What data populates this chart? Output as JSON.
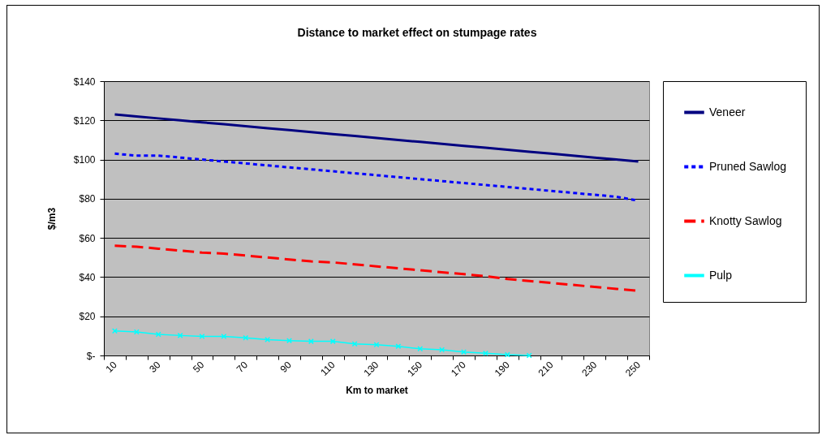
{
  "chart_data": {
    "type": "line",
    "title": "Distance to market effect on stumpage rates",
    "xlabel": "Km to market",
    "ylabel": "$/m3",
    "categories": [
      "10",
      null,
      "30",
      null,
      "50",
      null,
      "70",
      null,
      "90",
      null,
      "110",
      null,
      "130",
      null,
      "150",
      null,
      "170",
      null,
      "190",
      null,
      "210",
      null,
      "230",
      null,
      "250"
    ],
    "series": [
      {
        "name": "Veneer",
        "color": "#000080",
        "line_style": "solid",
        "values": [
          123,
          122,
          121,
          120,
          119,
          118,
          117,
          116,
          115,
          114,
          113,
          112,
          111,
          110,
          109,
          108,
          107,
          106,
          105,
          104,
          103,
          102,
          101,
          100,
          99
        ]
      },
      {
        "name": "Pruned Sawlog",
        "color": "#0000ff",
        "line_style": "dotted",
        "values": [
          103,
          102,
          102,
          101,
          100,
          99,
          98,
          97,
          96,
          95,
          94,
          93,
          92,
          91,
          90,
          89,
          88,
          87,
          86,
          85,
          84,
          83,
          82,
          81,
          79
        ]
      },
      {
        "name": "Knotty Sawlog",
        "color": "#ff0000",
        "line_style": "dashed",
        "values": [
          56,
          55.5,
          54.5,
          53.5,
          52.5,
          52,
          51,
          50,
          49,
          48,
          47.5,
          46.5,
          45.5,
          44.5,
          43.5,
          42.5,
          41.5,
          40.5,
          39,
          38,
          37,
          36,
          35,
          34,
          33
        ]
      },
      {
        "name": "Pulp",
        "color": "#00ffff",
        "line_style": "solid",
        "marker": "cross",
        "values": [
          12.5,
          12,
          10.8,
          10.2,
          9.7,
          9.7,
          9,
          8.1,
          7.6,
          7.2,
          7.2,
          5.9,
          5.5,
          4.7,
          3.4,
          2.9,
          1.8,
          1.1,
          0.4,
          0,
          null,
          null,
          null,
          null,
          null
        ]
      }
    ],
    "ylim": [
      0,
      140
    ],
    "yticks": [
      {
        "value": 0,
        "label": "$-"
      },
      {
        "value": 20,
        "label": "$20"
      },
      {
        "value": 40,
        "label": "$40"
      },
      {
        "value": 60,
        "label": "$60"
      },
      {
        "value": 80,
        "label": "$80"
      },
      {
        "value": 100,
        "label": "$100"
      },
      {
        "value": 120,
        "label": "$120"
      },
      {
        "value": 140,
        "label": "$140"
      }
    ],
    "grid": "y",
    "legend": "right"
  }
}
